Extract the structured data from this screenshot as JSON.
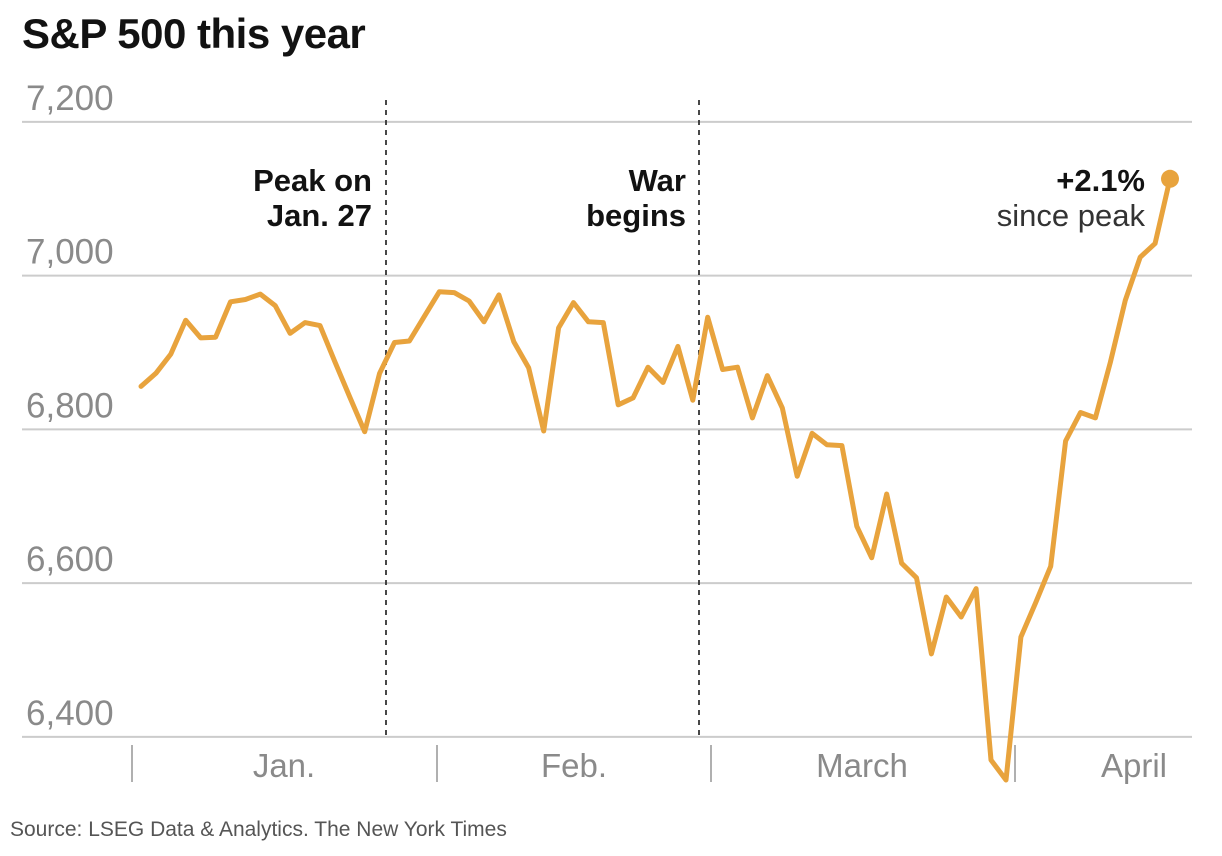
{
  "title": "S&P 500 this year",
  "source": "Source: LSEG Data & Analytics. The New York Times",
  "colors": {
    "line": "#e8a33d",
    "grid": "#cccccc",
    "axis_text": "#8a8a8a",
    "annotation_text": "#121212",
    "event_line": "#333333"
  },
  "chart_data": {
    "type": "line",
    "title": "S&P 500 this year",
    "xlabel": "",
    "ylabel": "",
    "ylim": [
      6370,
      7235
    ],
    "y_ticks": [
      6400,
      6600,
      6800,
      7000,
      7200
    ],
    "y_tick_labels": [
      "6,400",
      "6,600",
      "6,800",
      "7,000",
      "7,200"
    ],
    "x_month_labels": [
      "Jan.",
      "Feb.",
      "March",
      "April"
    ],
    "grid": "horizontal",
    "series": [
      {
        "values": [
          6856,
          6873,
          6898,
          6942,
          6919,
          6920,
          6966,
          6969,
          6976,
          6961,
          6925,
          6939,
          6935,
          6888,
          6842,
          6797,
          6873,
          6913,
          6915,
          6947,
          6979,
          6978,
          6967,
          6940,
          6975,
          6914,
          6880,
          6798,
          6932,
          6965,
          6940,
          6939,
          6832,
          6841,
          6881,
          6861,
          6908,
          6838,
          6946,
          6878,
          6881,
          6815,
          6870,
          6828,
          6739,
          6795,
          6780,
          6779,
          6674,
          6633,
          6716,
          6626,
          6607,
          6508,
          6582,
          6556,
          6593,
          6370,
          6344,
          6530,
          6575,
          6622,
          6785,
          6822,
          6815,
          6887,
          6968,
          7024,
          7042,
          7126
        ]
      }
    ],
    "annotations": [
      {
        "bold": "Peak on",
        "bold2": "Jan. 27"
      },
      {
        "bold": "War",
        "bold2": "begins"
      },
      {
        "bold": "+2.1%",
        "text": "since peak"
      }
    ]
  }
}
